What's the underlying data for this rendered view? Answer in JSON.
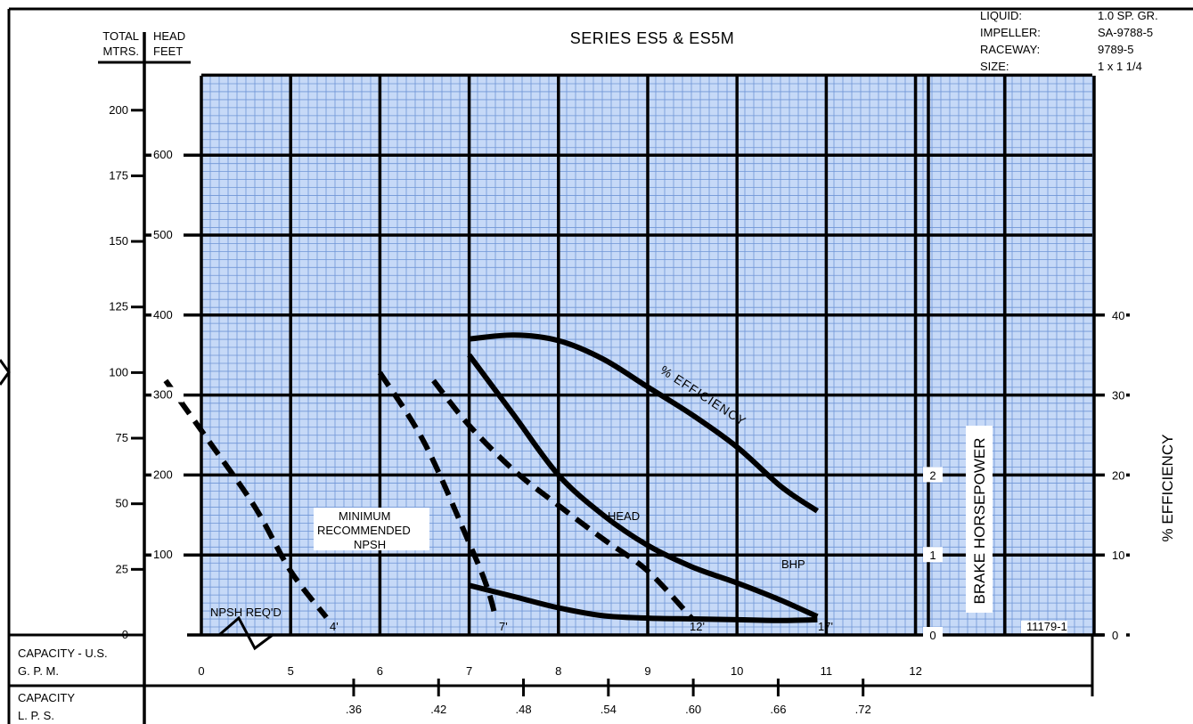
{
  "chart_data": {
    "type": "line",
    "title": "SERIES  ES5 & ES5M",
    "info": {
      "labels": [
        "LIQUID:",
        "IMPELLER:",
        "RACEWAY:",
        "SIZE:"
      ],
      "values": [
        "1.0 SP. GR.",
        "SA-9788-5",
        "9789-5",
        "1 x 1 1/4"
      ]
    },
    "axes": {
      "total_head_label": "TOTAL",
      "head_label": "HEAD",
      "meters_label": "MTRS.",
      "feet_label": "FEET",
      "capacity_gpm_label_1": "CAPACITY - U.S.",
      "capacity_gpm_label_2": "G. P. M.",
      "capacity_lps_label_1": "CAPACITY",
      "capacity_lps_label_2": "L. P. S.",
      "bhp_label": "BRAKE HORSEPOWER",
      "efficiency_label": "% EFFICIENCY",
      "meters_ticks": [
        "0",
        "25",
        "50",
        "75",
        "100",
        "125",
        "150",
        "175",
        "200"
      ],
      "feet_ticks": [
        "100",
        "200",
        "300",
        "400",
        "500",
        "600"
      ],
      "gpm_ticks": [
        "0",
        "5",
        "6",
        "7",
        "8",
        "9",
        "10",
        "11",
        "12"
      ],
      "lps_ticks": [
        ".36",
        ".42",
        ".48",
        ".54",
        ".60",
        ".66",
        ".72"
      ],
      "bhp_ticks": [
        "0",
        "1",
        "2"
      ],
      "efficiency_ticks": [
        "0",
        "10",
        "20",
        "30",
        "40"
      ]
    },
    "xlim": [
      4,
      14
    ],
    "ylim": [
      0,
      700
    ],
    "series": [
      {
        "name": "HEAD",
        "style": "solid",
        "x": [
          7.0,
          7.5,
          8.0,
          8.5,
          9.0,
          9.5,
          10.0,
          10.5,
          10.9
        ],
        "y": [
          350,
          275,
          200,
          150,
          112,
          85,
          65,
          43,
          23
        ]
      },
      {
        "name": "BHP",
        "style": "solid",
        "x": [
          7.0,
          7.5,
          8.0,
          8.5,
          9.0,
          9.5,
          10.0,
          10.5,
          10.9
        ],
        "y": [
          0.62,
          0.48,
          0.34,
          0.24,
          0.21,
          0.2,
          0.19,
          0.18,
          0.19
        ]
      },
      {
        "name": "% EFFICIENCY",
        "style": "solid",
        "x": [
          7.0,
          7.5,
          8.0,
          8.5,
          9.0,
          9.5,
          10.0,
          10.5,
          10.9
        ],
        "y": [
          37,
          37.5,
          36.8,
          34.5,
          31,
          27.5,
          23.5,
          18.5,
          15.5
        ]
      },
      {
        "name": "4'",
        "style": "dashed",
        "x": [
          3.6,
          4.1,
          4.6,
          5.0,
          5.4
        ],
        "y": [
          318,
          240,
          160,
          80,
          22
        ]
      },
      {
        "name": "7'",
        "style": "dashed",
        "x": [
          6.0,
          6.5,
          7.0,
          7.2,
          7.3
        ],
        "y": [
          328,
          240,
          115,
          60,
          20
        ]
      },
      {
        "name": "12'",
        "style": "dashed",
        "x": [
          6.6,
          7.0,
          7.5,
          8.0,
          8.5,
          9.0,
          9.5
        ],
        "y": [
          318,
          262,
          206,
          162,
          120,
          80,
          20
        ]
      },
      {
        "name": "17'",
        "style": "none",
        "x": [],
        "y": []
      }
    ],
    "annotations": {
      "npsh_req": "NPSH REQ'D",
      "min_npsh_1": "MINIMUM",
      "min_npsh_2": "RECOMMENDED",
      "min_npsh_3": "NPSH",
      "npsh_4": "4'",
      "npsh_7": "7'",
      "npsh_12": "12'",
      "npsh_17": "17'",
      "curve_number": "11179-1"
    }
  }
}
